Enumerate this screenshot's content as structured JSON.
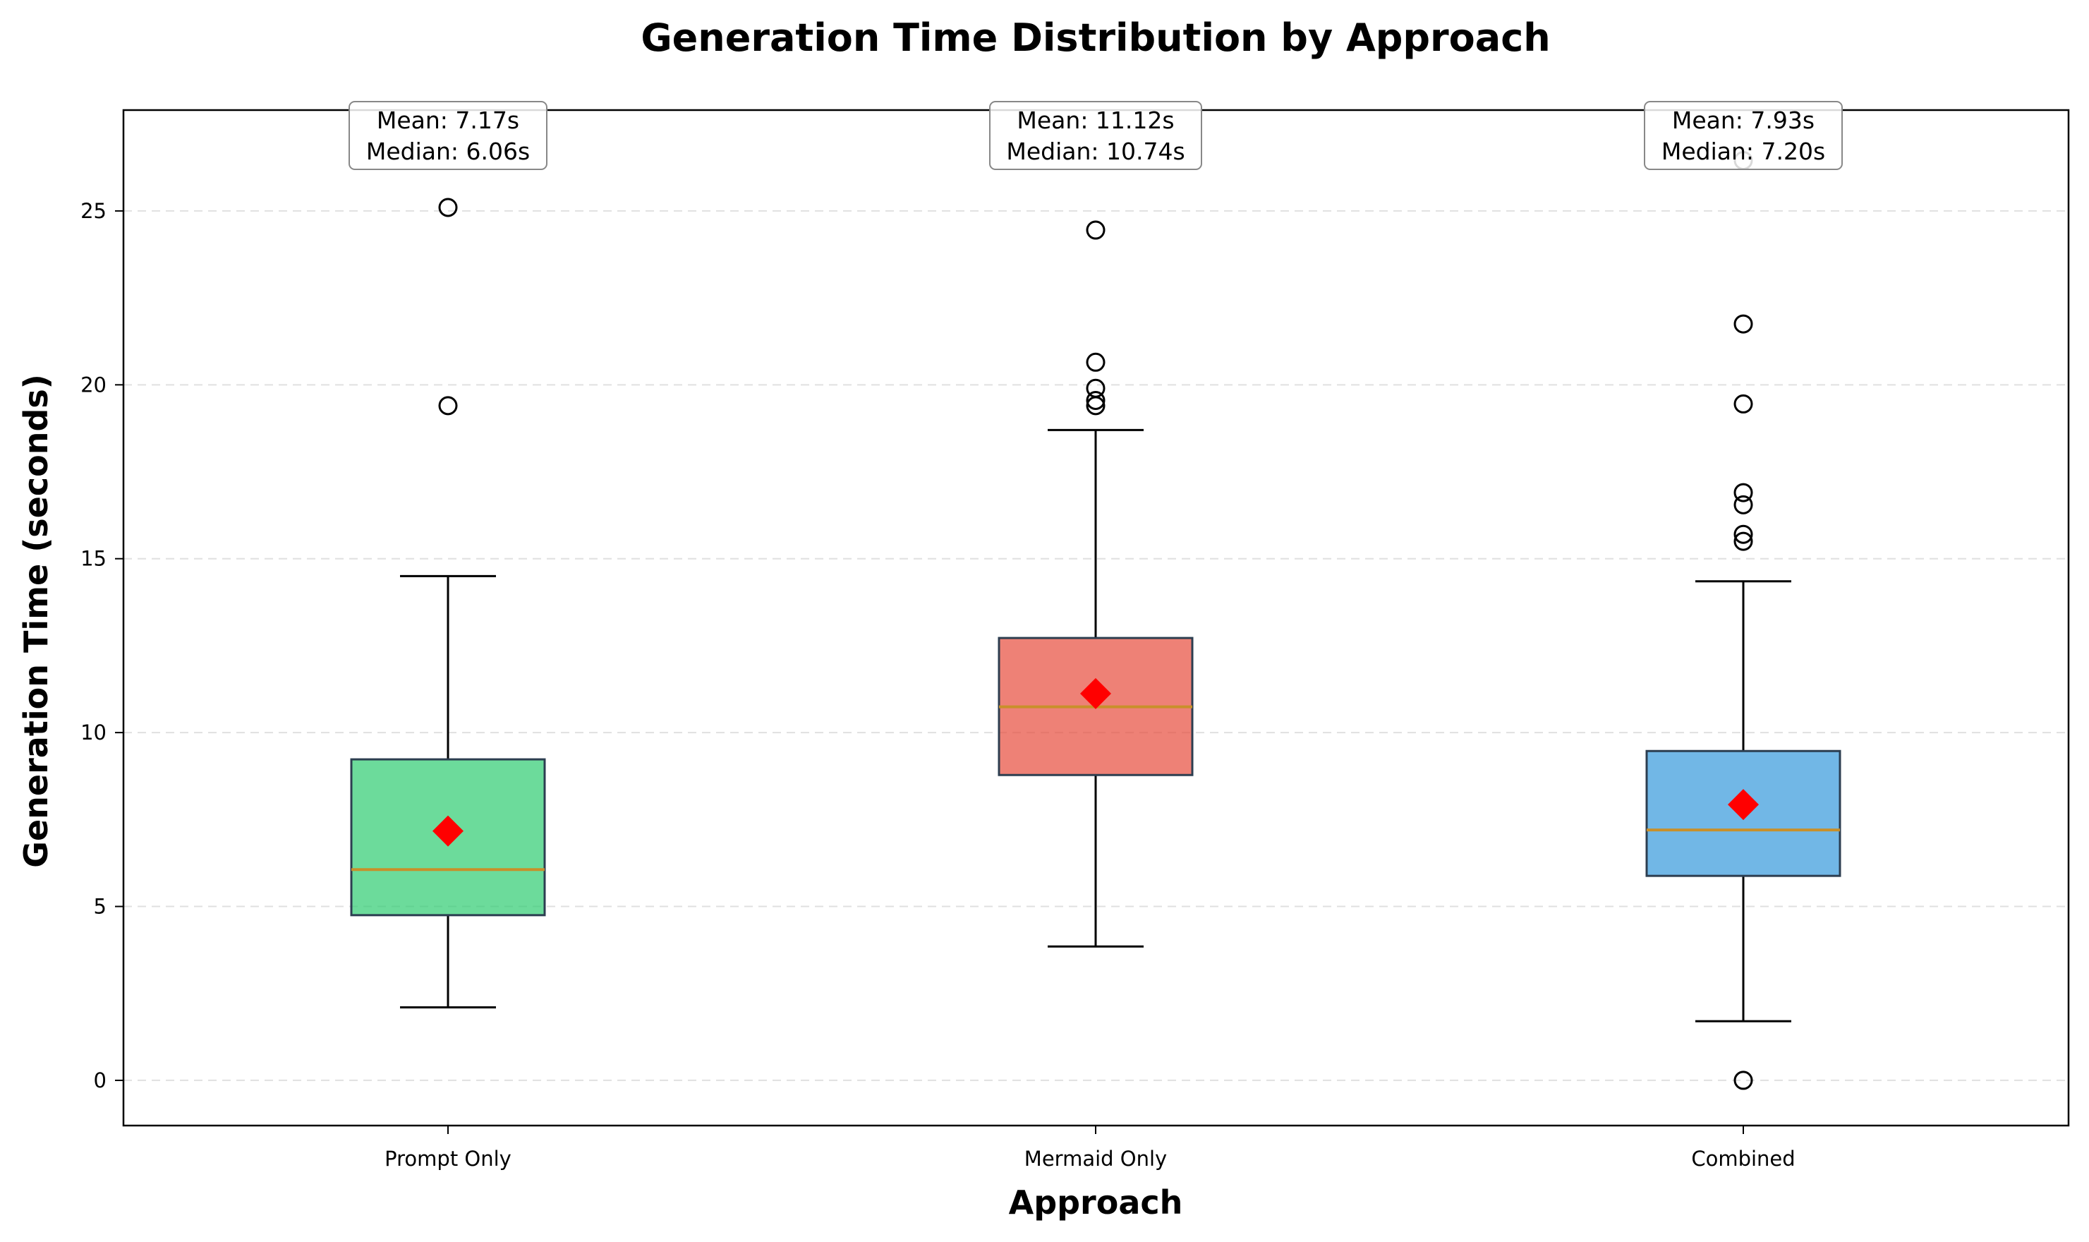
{
  "chart_data": {
    "type": "box",
    "title": "Generation Time Distribution by Approach",
    "xlabel": "Approach",
    "ylabel": "Generation Time (seconds)",
    "ylim": [
      -1.3,
      27.9
    ],
    "yticks": [
      0,
      5,
      10,
      15,
      20,
      25
    ],
    "grid": "y-dashed",
    "categories": [
      "Prompt Only",
      "Mermaid Only",
      "Combined"
    ],
    "series": [
      {
        "category": "Prompt Only",
        "color": "#2ecc71",
        "whisker_low": 2.1,
        "q1": 4.75,
        "median": 6.06,
        "q3": 9.23,
        "whisker_high": 14.5,
        "mean": 7.17,
        "outliers": [
          19.4,
          25.1
        ],
        "annotation": {
          "mean": "Mean: 7.17s",
          "median": "Median: 6.06s"
        }
      },
      {
        "category": "Mermaid Only",
        "color": "#e74c3c",
        "whisker_low": 3.85,
        "q1": 8.78,
        "median": 10.74,
        "q3": 12.72,
        "whisker_high": 18.7,
        "mean": 11.12,
        "outliers": [
          19.4,
          19.55,
          19.9,
          20.65,
          24.45
        ],
        "annotation": {
          "mean": "Mean: 11.12s",
          "median": "Median: 10.74s"
        }
      },
      {
        "category": "Combined",
        "color": "#3498db",
        "whisker_low": 1.7,
        "q1": 5.88,
        "median": 7.2,
        "q3": 9.47,
        "whisker_high": 14.35,
        "mean": 7.93,
        "outliers": [
          0.0,
          15.5,
          15.7,
          16.55,
          16.9,
          19.45,
          21.75,
          26.45
        ],
        "annotation": {
          "mean": "Mean: 7.93s",
          "median": "Median: 7.20s"
        }
      }
    ]
  }
}
